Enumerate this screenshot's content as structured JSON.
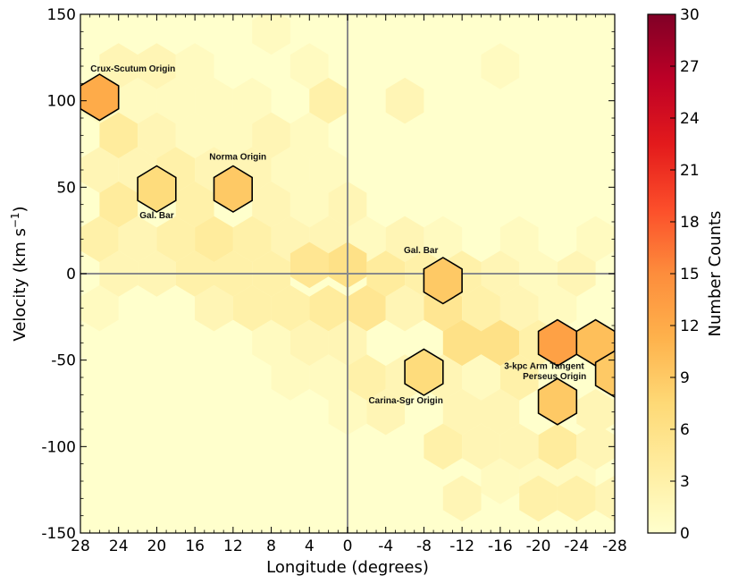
{
  "chart_data": {
    "type": "hexbin",
    "xlabel": "Longitude (degrees)",
    "ylabel_text": "Velocity (km s",
    "ylabel_sup": "−1",
    "ylabel_close": ")",
    "xlim": [
      28,
      -28
    ],
    "ylim": [
      -150,
      150
    ],
    "x_ticks": [
      28,
      24,
      20,
      16,
      12,
      8,
      4,
      0,
      -4,
      -8,
      -12,
      -16,
      -20,
      -24,
      -28
    ],
    "x_tick_labels": [
      "28",
      "24",
      "20",
      "16",
      "12",
      "8",
      "4",
      "0",
      "-4",
      "-8",
      "-12",
      "-16",
      "-20",
      "-24",
      "-28"
    ],
    "y_ticks": [
      150,
      100,
      50,
      0,
      -50,
      -100,
      -150
    ],
    "y_tick_labels": [
      "150",
      "100",
      "50",
      "0",
      "-50",
      "-100",
      "-150"
    ],
    "reference_lines": {
      "x": 0,
      "y": 0
    },
    "colorbar": {
      "label": "Number Counts",
      "min": 0,
      "max": 30,
      "ticks": [
        0,
        3,
        6,
        9,
        12,
        15,
        18,
        21,
        24,
        27,
        30
      ],
      "tick_labels": [
        "0",
        "3",
        "6",
        "9",
        "12",
        "15",
        "18",
        "21",
        "24",
        "27",
        "30"
      ],
      "colormap": "YlOrRd",
      "stops": [
        "#ffffcc",
        "#ffeda0",
        "#fed976",
        "#feb24c",
        "#fd8d3c",
        "#fc4e2a",
        "#e31a1c",
        "#bd0026",
        "#800026"
      ]
    },
    "hexbin_grid": {
      "column_spacing_deg": 4,
      "row_spacing_kms": 20
    },
    "cells": [
      {
        "l": 8,
        "v": 140,
        "c": 1
      },
      {
        "l": 24,
        "v": 120,
        "c": 2
      },
      {
        "l": 20,
        "v": 120,
        "c": 2
      },
      {
        "l": 16,
        "v": 120,
        "c": 1
      },
      {
        "l": 4,
        "v": 120,
        "c": 1
      },
      {
        "l": -16,
        "v": 120,
        "c": 1
      },
      {
        "l": 26,
        "v": 100,
        "c": 1
      },
      {
        "l": 22,
        "v": 100,
        "c": 1
      },
      {
        "l": 18,
        "v": 100,
        "c": 1
      },
      {
        "l": 14,
        "v": 100,
        "c": 1
      },
      {
        "l": 10,
        "v": 100,
        "c": 1
      },
      {
        "l": 2,
        "v": 100,
        "c": 3
      },
      {
        "l": -6,
        "v": 100,
        "c": 2
      },
      {
        "l": 24,
        "v": 80,
        "c": 4
      },
      {
        "l": 20,
        "v": 80,
        "c": 2
      },
      {
        "l": 16,
        "v": 80,
        "c": 1
      },
      {
        "l": 12,
        "v": 80,
        "c": 1
      },
      {
        "l": 8,
        "v": 80,
        "c": 2
      },
      {
        "l": 4,
        "v": 80,
        "c": 1
      },
      {
        "l": 26,
        "v": 60,
        "c": 2
      },
      {
        "l": 22,
        "v": 60,
        "c": 2
      },
      {
        "l": 18,
        "v": 60,
        "c": 3
      },
      {
        "l": 14,
        "v": 60,
        "c": 2
      },
      {
        "l": 10,
        "v": 60,
        "c": 2
      },
      {
        "l": 6,
        "v": 60,
        "c": 1
      },
      {
        "l": 2,
        "v": 60,
        "c": 1
      },
      {
        "l": 24,
        "v": 40,
        "c": 4
      },
      {
        "l": 16,
        "v": 40,
        "c": 3
      },
      {
        "l": 8,
        "v": 40,
        "c": 2
      },
      {
        "l": 4,
        "v": 40,
        "c": 1
      },
      {
        "l": 0,
        "v": 40,
        "c": 2
      },
      {
        "l": 26,
        "v": 20,
        "c": 3
      },
      {
        "l": 22,
        "v": 20,
        "c": 2
      },
      {
        "l": 18,
        "v": 20,
        "c": 3
      },
      {
        "l": 14,
        "v": 20,
        "c": 4
      },
      {
        "l": 10,
        "v": 20,
        "c": 3
      },
      {
        "l": 6,
        "v": 20,
        "c": 2
      },
      {
        "l": 2,
        "v": 20,
        "c": 2
      },
      {
        "l": -2,
        "v": 20,
        "c": 1
      },
      {
        "l": -6,
        "v": 20,
        "c": 2
      },
      {
        "l": -10,
        "v": 20,
        "c": 1
      },
      {
        "l": -18,
        "v": 20,
        "c": 1
      },
      {
        "l": -26,
        "v": 20,
        "c": 1
      },
      {
        "l": 24,
        "v": 0,
        "c": 2
      },
      {
        "l": 20,
        "v": 0,
        "c": 2
      },
      {
        "l": 16,
        "v": 0,
        "c": 3
      },
      {
        "l": 12,
        "v": 0,
        "c": 3
      },
      {
        "l": 8,
        "v": 0,
        "c": 3
      },
      {
        "l": 4,
        "v": 5,
        "c": 5
      },
      {
        "l": 0,
        "v": 5,
        "c": 6
      },
      {
        "l": -4,
        "v": 0,
        "c": 4
      },
      {
        "l": -8,
        "v": 0,
        "c": 3
      },
      {
        "l": -12,
        "v": 0,
        "c": 3
      },
      {
        "l": -16,
        "v": 0,
        "c": 2
      },
      {
        "l": -20,
        "v": 0,
        "c": 1
      },
      {
        "l": -24,
        "v": 0,
        "c": 2
      },
      {
        "l": 26,
        "v": -20,
        "c": 1
      },
      {
        "l": 14,
        "v": -20,
        "c": 2
      },
      {
        "l": 10,
        "v": -20,
        "c": 3
      },
      {
        "l": 6,
        "v": -20,
        "c": 3
      },
      {
        "l": 2,
        "v": -20,
        "c": 4
      },
      {
        "l": -2,
        "v": -20,
        "c": 5
      },
      {
        "l": -6,
        "v": -20,
        "c": 2
      },
      {
        "l": -10,
        "v": -20,
        "c": 5
      },
      {
        "l": -14,
        "v": -20,
        "c": 3
      },
      {
        "l": -18,
        "v": -20,
        "c": 2
      },
      {
        "l": -22,
        "v": -20,
        "c": 1
      },
      {
        "l": 8,
        "v": -40,
        "c": 1
      },
      {
        "l": 4,
        "v": -40,
        "c": 2
      },
      {
        "l": 0,
        "v": -40,
        "c": 2
      },
      {
        "l": -12,
        "v": -40,
        "c": 6
      },
      {
        "l": -16,
        "v": -40,
        "c": 6
      },
      {
        "l": -20,
        "v": -40,
        "c": 3
      },
      {
        "l": 6,
        "v": -60,
        "c": 1
      },
      {
        "l": 2,
        "v": -60,
        "c": 1
      },
      {
        "l": -2,
        "v": -60,
        "c": 3
      },
      {
        "l": -6,
        "v": -60,
        "c": 2
      },
      {
        "l": -10,
        "v": -60,
        "c": 2
      },
      {
        "l": -14,
        "v": -60,
        "c": 1
      },
      {
        "l": -18,
        "v": -60,
        "c": 3
      },
      {
        "l": 0,
        "v": -80,
        "c": 1
      },
      {
        "l": -4,
        "v": -80,
        "c": 2
      },
      {
        "l": -12,
        "v": -80,
        "c": 2
      },
      {
        "l": -16,
        "v": -80,
        "c": 2
      },
      {
        "l": -26,
        "v": -80,
        "c": 2
      },
      {
        "l": -10,
        "v": -100,
        "c": 3
      },
      {
        "l": -14,
        "v": -100,
        "c": 2
      },
      {
        "l": -18,
        "v": -100,
        "c": 2
      },
      {
        "l": -22,
        "v": -100,
        "c": 4
      },
      {
        "l": -26,
        "v": -100,
        "c": 2
      },
      {
        "l": -16,
        "v": -120,
        "c": 1
      },
      {
        "l": -20,
        "v": -120,
        "c": 1
      },
      {
        "l": -24,
        "v": -120,
        "c": 1
      },
      {
        "l": -12,
        "v": -130,
        "c": 2
      },
      {
        "l": -20,
        "v": -130,
        "c": 3
      },
      {
        "l": -24,
        "v": -130,
        "c": 3
      },
      {
        "l": -28,
        "v": -130,
        "c": 2
      }
    ],
    "highlighted_cells": [
      {
        "l": 26,
        "v": 102,
        "c": 12
      },
      {
        "l": 20,
        "v": 49,
        "c": 7
      },
      {
        "l": 12,
        "v": 49,
        "c": 9
      },
      {
        "l": -10,
        "v": -4,
        "c": 9
      },
      {
        "l": -8,
        "v": -57,
        "c": 7
      },
      {
        "l": -22,
        "v": -40,
        "c": 13
      },
      {
        "l": -26,
        "v": -40,
        "c": 10
      },
      {
        "l": -28,
        "v": -58,
        "c": 9
      },
      {
        "l": -22,
        "v": -74,
        "c": 9
      }
    ],
    "annotations": [
      {
        "text": "Crux-Scutum Origin",
        "l": 22.5,
        "v": 117
      },
      {
        "text": "Norma Origin",
        "l": 11.5,
        "v": 66
      },
      {
        "text": "Gal. Bar",
        "l": 20.0,
        "v": 32
      },
      {
        "text": "Gal. Bar",
        "l": -7.7,
        "v": 12
      },
      {
        "text": "3-kpc Arm Tangent",
        "l": -20.6,
        "v": -55
      },
      {
        "text": "Perseus Origin",
        "l": -21.7,
        "v": -61
      },
      {
        "text": "Carina-Sgr Origin",
        "l": -6.1,
        "v": -75
      }
    ]
  }
}
